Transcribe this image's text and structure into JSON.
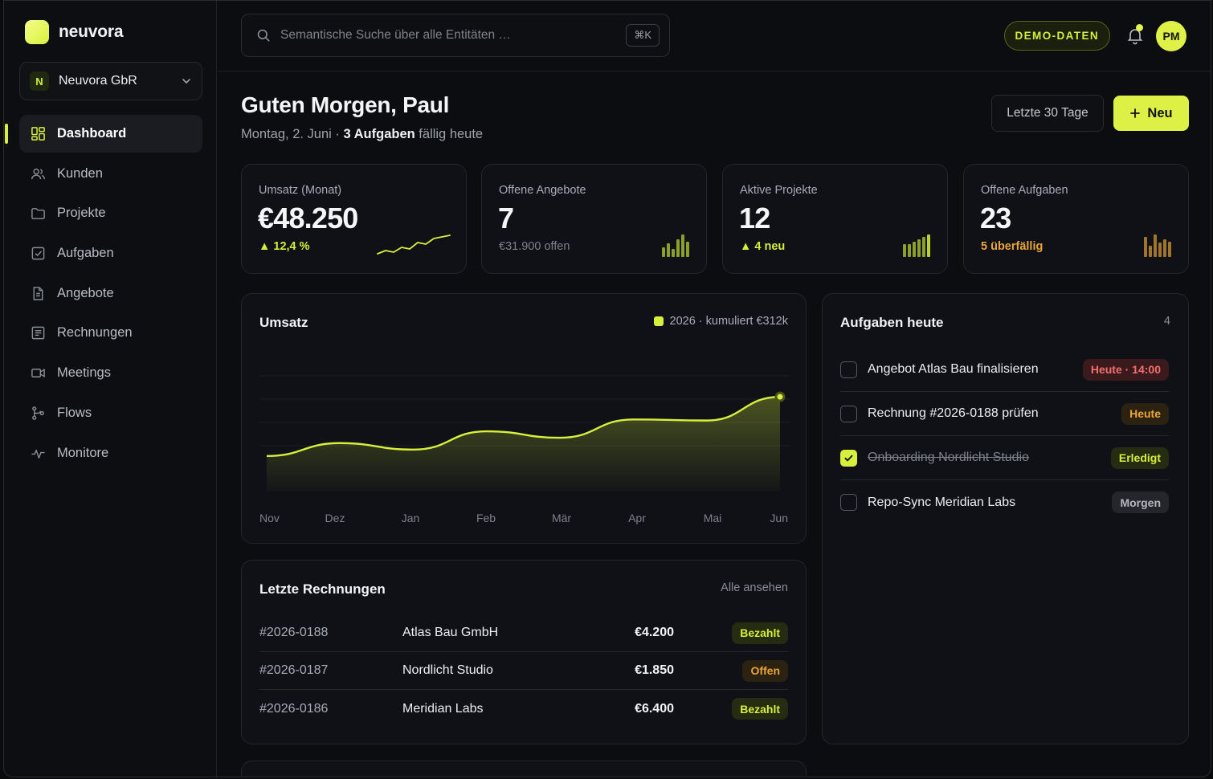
{
  "brand": {
    "name": "neuvora"
  },
  "org": {
    "badge": "N",
    "name": "Neuvora GbR"
  },
  "sidebar": {
    "items": [
      {
        "label": "Dashboard",
        "icon": "dashboard-icon",
        "active": true
      },
      {
        "label": "Kunden",
        "icon": "users-icon"
      },
      {
        "label": "Projekte",
        "icon": "folder-icon"
      },
      {
        "label": "Aufgaben",
        "icon": "checkbox-icon"
      },
      {
        "label": "Angebote",
        "icon": "document-icon"
      },
      {
        "label": "Rechnungen",
        "icon": "receipt-icon"
      },
      {
        "label": "Meetings",
        "icon": "video-icon"
      },
      {
        "label": "Flows",
        "icon": "flow-icon"
      },
      {
        "label": "Monitore",
        "icon": "pulse-icon"
      }
    ]
  },
  "header": {
    "search_placeholder": "Semantische Suche über alle Entitäten …",
    "shortcut": "⌘K",
    "demo_badge": "DEMO-DATEN",
    "avatar_initials": "PM"
  },
  "greeting": {
    "title": "Guten Morgen, Paul",
    "date": "Montag, 2. Juni · ",
    "tasks_bold": "3 Aufgaben",
    "tasks_rest": " fällig heute",
    "range_button": "Letzte 30 Tage",
    "new_button": "Neu"
  },
  "stats": [
    {
      "label": "Umsatz (Monat)",
      "value": "€48.250",
      "sub": "▲ 12,4 %",
      "sub_color": "#d6ef3a"
    },
    {
      "label": "Offene Angebote",
      "value": "7",
      "sub": "€31.900 offen",
      "sub_color": "#7e828a"
    },
    {
      "label": "Aktive Projekte",
      "value": "12",
      "sub": "▲ 4 neu",
      "sub_color": "#d6ef3a"
    },
    {
      "label": "Offene Aufgaben",
      "value": "23",
      "sub": "5 überfällig",
      "sub_color": "#eaa53a"
    }
  ],
  "revenue": {
    "title": "Umsatz",
    "legend": "2026 · kumuliert €312k"
  },
  "chart_data": {
    "type": "area",
    "title": "Umsatz",
    "categories": [
      "Nov",
      "Dez",
      "Jan",
      "Feb",
      "Mär",
      "Apr",
      "Mai",
      "Jun"
    ],
    "series": [
      {
        "name": "2026 · kumuliert €312k",
        "values": [
          24,
          36,
          30,
          47,
          41,
          58,
          57,
          79
        ]
      }
    ],
    "ylim": [
      0,
      100
    ],
    "grid": true,
    "color": "#d8f03c"
  },
  "tasks": {
    "title": "Aufgaben heute",
    "count": "4",
    "items": [
      {
        "text": "Angebot Atlas Bau finalisieren",
        "done": false,
        "tag": "Heute · 14:00",
        "tag_style": "red"
      },
      {
        "text": "Rechnung #2026-0188 prüfen",
        "done": false,
        "tag": "Heute",
        "tag_style": "orange"
      },
      {
        "text": "Onboarding Nordlicht Studio",
        "done": true,
        "tag": "Erledigt",
        "tag_style": "green"
      },
      {
        "text": "Repo-Sync Meridian Labs",
        "done": false,
        "tag": "Morgen",
        "tag_style": "gray"
      }
    ]
  },
  "invoices": {
    "title": "Letzte Rechnungen",
    "link": "Alle ansehen",
    "rows": [
      {
        "number": "#2026-0188",
        "client": "Atlas Bau GmbH",
        "amount": "€4.200",
        "status": "Bezahlt",
        "status_style": "green"
      },
      {
        "number": "#2026-0187",
        "client": "Nordlicht Studio",
        "amount": "€1.850",
        "status": "Offen",
        "status_style": "orange"
      },
      {
        "number": "#2026-0186",
        "client": "Meridian Labs",
        "amount": "€6.400",
        "status": "Bezahlt",
        "status_style": "green"
      }
    ]
  }
}
